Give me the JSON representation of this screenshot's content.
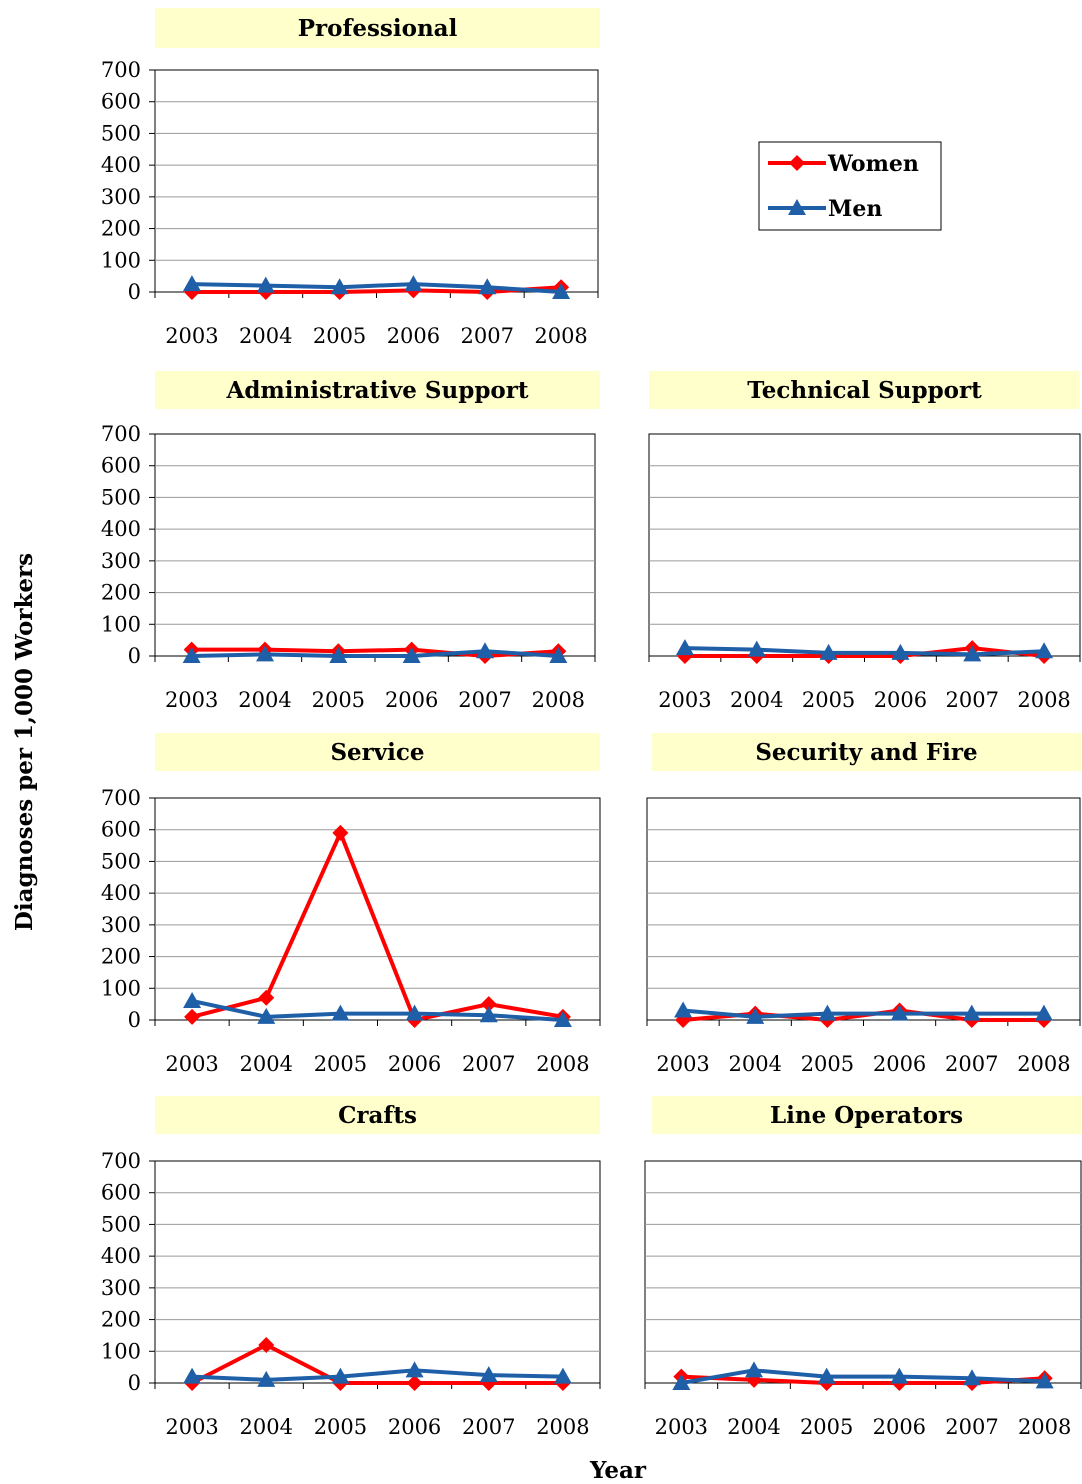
{
  "chart_data": {
    "type": "line",
    "ylabel": "Diagnoses per 1,000 Workers",
    "xlabel": "Year",
    "legend": {
      "placement": "top-right",
      "entries": [
        {
          "name": "Women",
          "color": "#ff0000",
          "marker": "diamond"
        },
        {
          "name": "Men",
          "color": "#1f5fa8",
          "marker": "triangle"
        }
      ]
    },
    "x": [
      "2003",
      "2004",
      "2005",
      "2006",
      "2007",
      "2008"
    ],
    "yticks": [
      "700",
      "600",
      "500",
      "400",
      "300",
      "200",
      "100",
      "0"
    ],
    "ylim": [
      0,
      700
    ],
    "grid": true,
    "panels": [
      {
        "title": "Professional",
        "series": [
          {
            "name": "Women",
            "values": [
              0,
              0,
              0,
              5,
              0,
              15
            ]
          },
          {
            "name": "Men",
            "values": [
              25,
              20,
              15,
              25,
              15,
              0
            ]
          }
        ]
      },
      {
        "title": "Administrative Support",
        "series": [
          {
            "name": "Women",
            "values": [
              20,
              20,
              15,
              20,
              0,
              15
            ]
          },
          {
            "name": "Men",
            "values": [
              0,
              5,
              0,
              0,
              15,
              0
            ]
          }
        ]
      },
      {
        "title": "Technical Support",
        "series": [
          {
            "name": "Women",
            "values": [
              0,
              0,
              0,
              0,
              25,
              0
            ]
          },
          {
            "name": "Men",
            "values": [
              25,
              20,
              10,
              10,
              5,
              15
            ]
          }
        ]
      },
      {
        "title": "Service",
        "series": [
          {
            "name": "Women",
            "values": [
              10,
              70,
              590,
              0,
              50,
              10
            ]
          },
          {
            "name": "Men",
            "values": [
              60,
              10,
              20,
              20,
              15,
              0
            ]
          }
        ]
      },
      {
        "title": "Security and Fire",
        "series": [
          {
            "name": "Women",
            "values": [
              0,
              20,
              0,
              30,
              0,
              0
            ]
          },
          {
            "name": "Men",
            "values": [
              30,
              10,
              20,
              20,
              20,
              20
            ]
          }
        ]
      },
      {
        "title": "Crafts",
        "series": [
          {
            "name": "Women",
            "values": [
              0,
              120,
              0,
              0,
              0,
              0
            ]
          },
          {
            "name": "Men",
            "values": [
              20,
              10,
              20,
              40,
              25,
              20
            ]
          }
        ]
      },
      {
        "title": "Line Operators",
        "series": [
          {
            "name": "Women",
            "values": [
              20,
              10,
              0,
              0,
              0,
              15
            ]
          },
          {
            "name": "Men",
            "values": [
              0,
              40,
              20,
              20,
              15,
              5
            ]
          }
        ]
      }
    ]
  }
}
